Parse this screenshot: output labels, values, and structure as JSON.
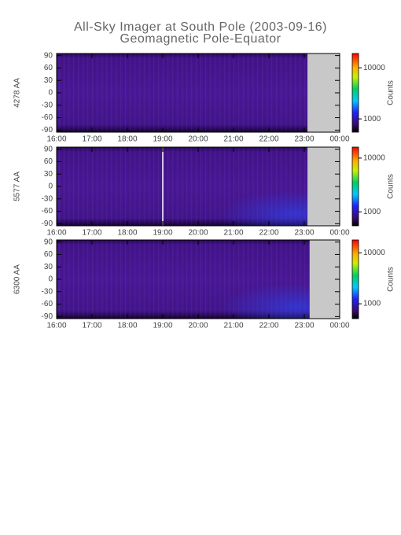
{
  "header": {
    "title": "All-Sky Imager at South Pole (2003-09-16)",
    "subtitle": "Geomagnetic Pole-Equator"
  },
  "chart_data": [
    {
      "type": "heatmap",
      "ylabel": "4278 AA",
      "colorbar_label": "Counts",
      "xlim": [
        16,
        24
      ],
      "data_xlim": [
        16,
        23.09
      ],
      "xticks": [
        {
          "value": 16,
          "label": "16:00"
        },
        {
          "value": 17,
          "label": "17:00"
        },
        {
          "value": 18,
          "label": "18:00"
        },
        {
          "value": 19,
          "label": "19:00"
        },
        {
          "value": 20,
          "label": "20:00"
        },
        {
          "value": 21,
          "label": "21:00"
        },
        {
          "value": 22,
          "label": "22:00"
        },
        {
          "value": 23,
          "label": "23:00"
        },
        {
          "value": 24,
          "label": "00:00"
        }
      ],
      "ylim": [
        -95,
        95
      ],
      "yticks": [
        90,
        60,
        30,
        0,
        -30,
        -60,
        -90
      ],
      "clim": [
        550,
        19000
      ],
      "clog": true,
      "cticks": [
        10000,
        1000
      ]
    },
    {
      "type": "heatmap",
      "ylabel": "5577 AA",
      "colorbar_label": "Counts",
      "xlim": [
        16,
        24
      ],
      "data_xlim": [
        16,
        23.09
      ],
      "gaps": [
        19
      ],
      "xticks": [
        {
          "value": 16,
          "label": "16:00"
        },
        {
          "value": 17,
          "label": "17:00"
        },
        {
          "value": 18,
          "label": "18:00"
        },
        {
          "value": 19,
          "label": "19:00"
        },
        {
          "value": 20,
          "label": "20:00"
        },
        {
          "value": 21,
          "label": "21:00"
        },
        {
          "value": 22,
          "label": "22:00"
        },
        {
          "value": 23,
          "label": "23:00"
        },
        {
          "value": 24,
          "label": "00:00"
        }
      ],
      "ylim": [
        -95,
        95
      ],
      "yticks": [
        90,
        60,
        30,
        0,
        -30,
        -60,
        -90
      ],
      "clim": [
        550,
        16000
      ],
      "clog": true,
      "cticks": [
        10000,
        1000
      ]
    },
    {
      "type": "heatmap",
      "ylabel": "6300 AA",
      "colorbar_label": "Counts",
      "xlim": [
        16,
        24
      ],
      "data_xlim": [
        16,
        23.15
      ],
      "xticks": [
        {
          "value": 16,
          "label": "16:00"
        },
        {
          "value": 17,
          "label": "17:00"
        },
        {
          "value": 18,
          "label": "18:00"
        },
        {
          "value": 19,
          "label": "19:00"
        },
        {
          "value": 20,
          "label": "20:00"
        },
        {
          "value": 21,
          "label": "21:00"
        },
        {
          "value": 22,
          "label": "22:00"
        },
        {
          "value": 23,
          "label": "23:00"
        },
        {
          "value": 24,
          "label": "00:00"
        }
      ],
      "ylim": [
        -95,
        95
      ],
      "yticks": [
        90,
        60,
        30,
        0,
        -30,
        -60,
        -90
      ],
      "clim": [
        510,
        18000
      ],
      "clog": true,
      "cticks": [
        10000,
        1000
      ]
    }
  ]
}
